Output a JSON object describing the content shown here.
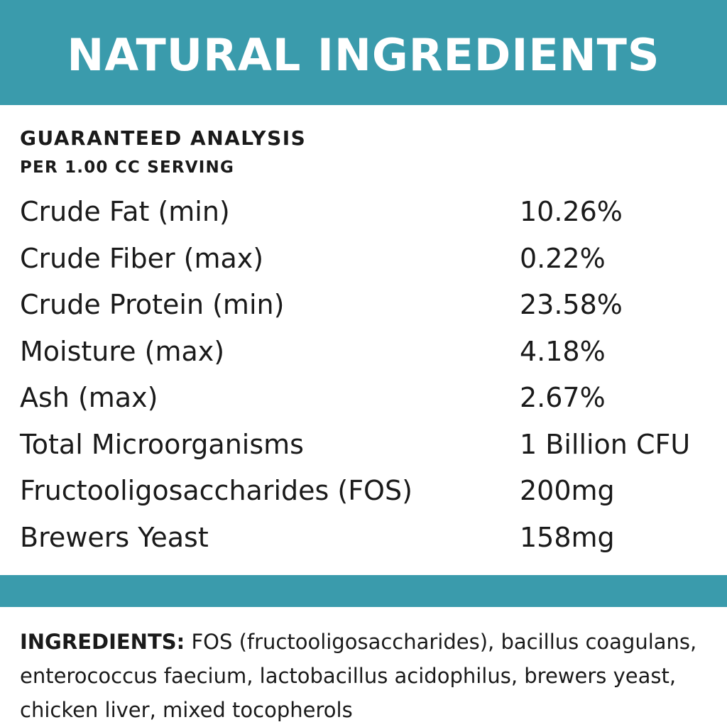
{
  "header": {
    "title": "NATURAL INGREDIENTS"
  },
  "analysis": {
    "heading": "GUARANTEED ANALYSIS",
    "subheading": "PER 1.00 CC SERVING",
    "rows": [
      [
        "Crude Fat (min)",
        "10.26%"
      ],
      [
        "Crude Fiber (max)",
        "0.22%"
      ],
      [
        "Crude Protein (min)",
        "23.58%"
      ],
      [
        "Moisture (max)",
        "4.18%"
      ],
      [
        "Ash (max)",
        "2.67%"
      ],
      [
        "Total Microorganisms",
        "1 Billion CFU"
      ],
      [
        "Fructooligosaccharides (FOS)",
        "200mg"
      ],
      [
        "Brewers Yeast",
        "158mg"
      ]
    ]
  },
  "ingredients": {
    "label": "INGREDIENTS:",
    "text": "FOS (fructooligosaccharides), bacillus coagulans, enterococcus faecium, lactobacillus acidophilus, brewers yeast, chicken liver, mixed tocopherols"
  }
}
